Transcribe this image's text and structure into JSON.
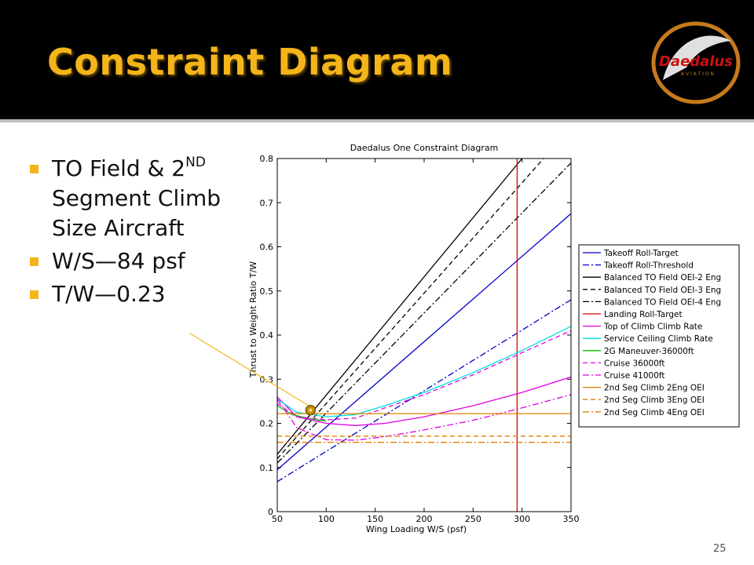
{
  "slide": {
    "title": "Constraint Diagram",
    "logo_text": "Daedalus",
    "logo_subtext": "A V I A T I O N",
    "bullets": [
      {
        "text": "TO Field & 2",
        "sup": "ND",
        "rest": " Segment Climb Size Aircraft"
      },
      {
        "text": "W/S—84 psf"
      },
      {
        "text": "T/W—0.23"
      }
    ],
    "page_number": "25",
    "colors": {
      "header_bg": "#000000",
      "title": "#f4b51a",
      "bullet": "#f4b51a"
    }
  },
  "chart_data": {
    "type": "line",
    "title": "Daedalus One Constraint Diagram",
    "xlabel": "Wing Loading W/S (psf)",
    "ylabel": "Thrust to Weight Ratio T/W",
    "xlim": [
      50,
      350
    ],
    "ylim": [
      0,
      0.8
    ],
    "xticks": [
      50,
      100,
      150,
      200,
      250,
      300,
      350
    ],
    "yticks": [
      0,
      0.1,
      0.2,
      0.3,
      0.4,
      0.5,
      0.6,
      0.7,
      0.8
    ],
    "ytick_labels": [
      "0",
      "0.1",
      "0.2",
      "0.3",
      "0.4",
      "0.5",
      "0.6",
      "0.7",
      "0.8"
    ],
    "grid": false,
    "legend_position": "right",
    "series": [
      {
        "name": "Takeoff Roll-Target",
        "color": "#0000cc",
        "dash": "solid",
        "x": [
          50,
          350
        ],
        "y": [
          0.095,
          0.675
        ]
      },
      {
        "name": "Takeoff Roll-Threshold",
        "color": "#0000cc",
        "dash": "dashdot",
        "x": [
          50,
          350
        ],
        "y": [
          0.068,
          0.48
        ]
      },
      {
        "name": "Balanced TO Field OEI-2 Eng",
        "color": "#000000",
        "dash": "solid",
        "x": [
          50,
          300
        ],
        "y": [
          0.13,
          0.8
        ]
      },
      {
        "name": "Balanced TO Field OEI-3 Eng",
        "color": "#000000",
        "dash": "dashed",
        "x": [
          50,
          322
        ],
        "y": [
          0.12,
          0.8
        ]
      },
      {
        "name": "Balanced TO Field OEI-4 Eng",
        "color": "#000000",
        "dash": "dashdot",
        "x": [
          50,
          350
        ],
        "y": [
          0.11,
          0.79
        ]
      },
      {
        "name": "Landing Roll-Target",
        "color": "#e00000",
        "dash": "solid",
        "x": [
          295,
          295
        ],
        "y": [
          0,
          0.8
        ]
      },
      {
        "name": "Top of Climb Climb Rate",
        "color": "#e000e0",
        "dash": "solid",
        "x": [
          50,
          70,
          100,
          130,
          160,
          200,
          250,
          300,
          350
        ],
        "y": [
          0.26,
          0.215,
          0.2,
          0.195,
          0.2,
          0.215,
          0.24,
          0.27,
          0.305
        ]
      },
      {
        "name": "Service Ceiling Climb Rate",
        "color": "#00e0e0",
        "dash": "solid",
        "x": [
          50,
          70,
          100,
          130,
          160,
          200,
          250,
          300,
          350
        ],
        "y": [
          0.255,
          0.225,
          0.215,
          0.22,
          0.24,
          0.27,
          0.315,
          0.365,
          0.42
        ]
      },
      {
        "name": "2G Maneuver-36000ft",
        "color": "#00c000",
        "dash": "solid",
        "x": [
          50,
          65,
          85,
          100
        ],
        "y": [
          0.24,
          0.22,
          0.21,
          0.205
        ]
      },
      {
        "name": "Cruise 36000ft",
        "color": "#e000e0",
        "dash": "dashed",
        "x": [
          50,
          70,
          100,
          130,
          160,
          200,
          250,
          300,
          350
        ],
        "y": [
          0.245,
          0.215,
          0.208,
          0.212,
          0.235,
          0.265,
          0.31,
          0.36,
          0.41
        ]
      },
      {
        "name": "Cruise 41000ft",
        "color": "#e000e0",
        "dash": "dashdot",
        "x": [
          50,
          70,
          100,
          130,
          160,
          200,
          250,
          300,
          350
        ],
        "y": [
          0.255,
          0.19,
          0.163,
          0.162,
          0.17,
          0.185,
          0.207,
          0.235,
          0.265
        ]
      },
      {
        "name": "2nd Seg Climb 2Eng OEI",
        "color": "#e08000",
        "dash": "solid",
        "x": [
          50,
          350
        ],
        "y": [
          0.222,
          0.222
        ]
      },
      {
        "name": "2nd Seg Climb 3Eng OEI",
        "color": "#e08000",
        "dash": "dashed",
        "x": [
          50,
          350
        ],
        "y": [
          0.171,
          0.171
        ]
      },
      {
        "name": "2nd Seg Climb 4Eng OEI",
        "color": "#e08000",
        "dash": "dashdot",
        "x": [
          50,
          350
        ],
        "y": [
          0.157,
          0.157
        ]
      }
    ],
    "design_point": {
      "x": 84,
      "y": 0.23,
      "color": "#c89000"
    }
  }
}
